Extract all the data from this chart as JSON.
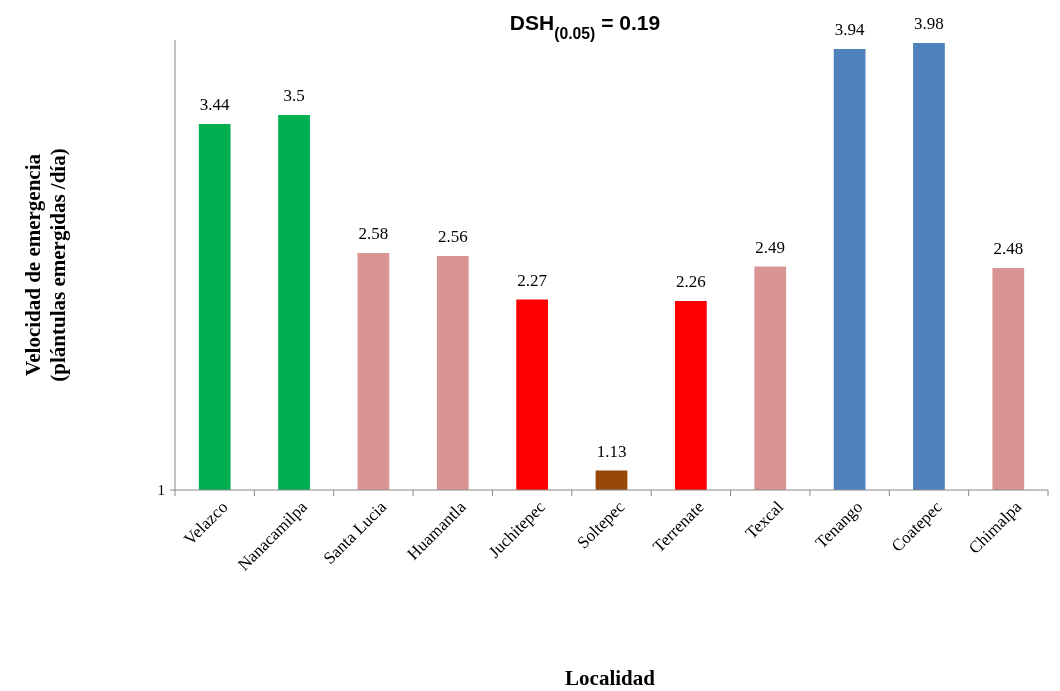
{
  "chart_data": {
    "type": "bar",
    "title": "DSH$_{(0.05)}$ = 0.19",
    "xlabel": "Localidad",
    "ylabel": "Velocidad de emergencia (plántulas emergidas /día)",
    "categories": [
      "Velazco",
      "Nanacamilpa",
      "Santa Lucia",
      "Huamantla",
      "Juchitepec",
      "Soltepec",
      "Terrenate",
      "Texcal",
      "Tenango",
      "Coatepec",
      "Chimalpa"
    ],
    "values": [
      3.44,
      3.5,
      2.58,
      2.56,
      2.27,
      1.13,
      2.26,
      2.49,
      3.94,
      3.98,
      2.48
    ],
    "colors": [
      "#00b050",
      "#00b050",
      "#d99594",
      "#d99594",
      "#ff0000",
      "#974806",
      "#ff0000",
      "#d99594",
      "#4f81bd",
      "#4f81bd",
      "#d99594"
    ],
    "ylim": [
      1,
      4
    ],
    "data_labels": true,
    "annotations": [
      "1"
    ]
  }
}
